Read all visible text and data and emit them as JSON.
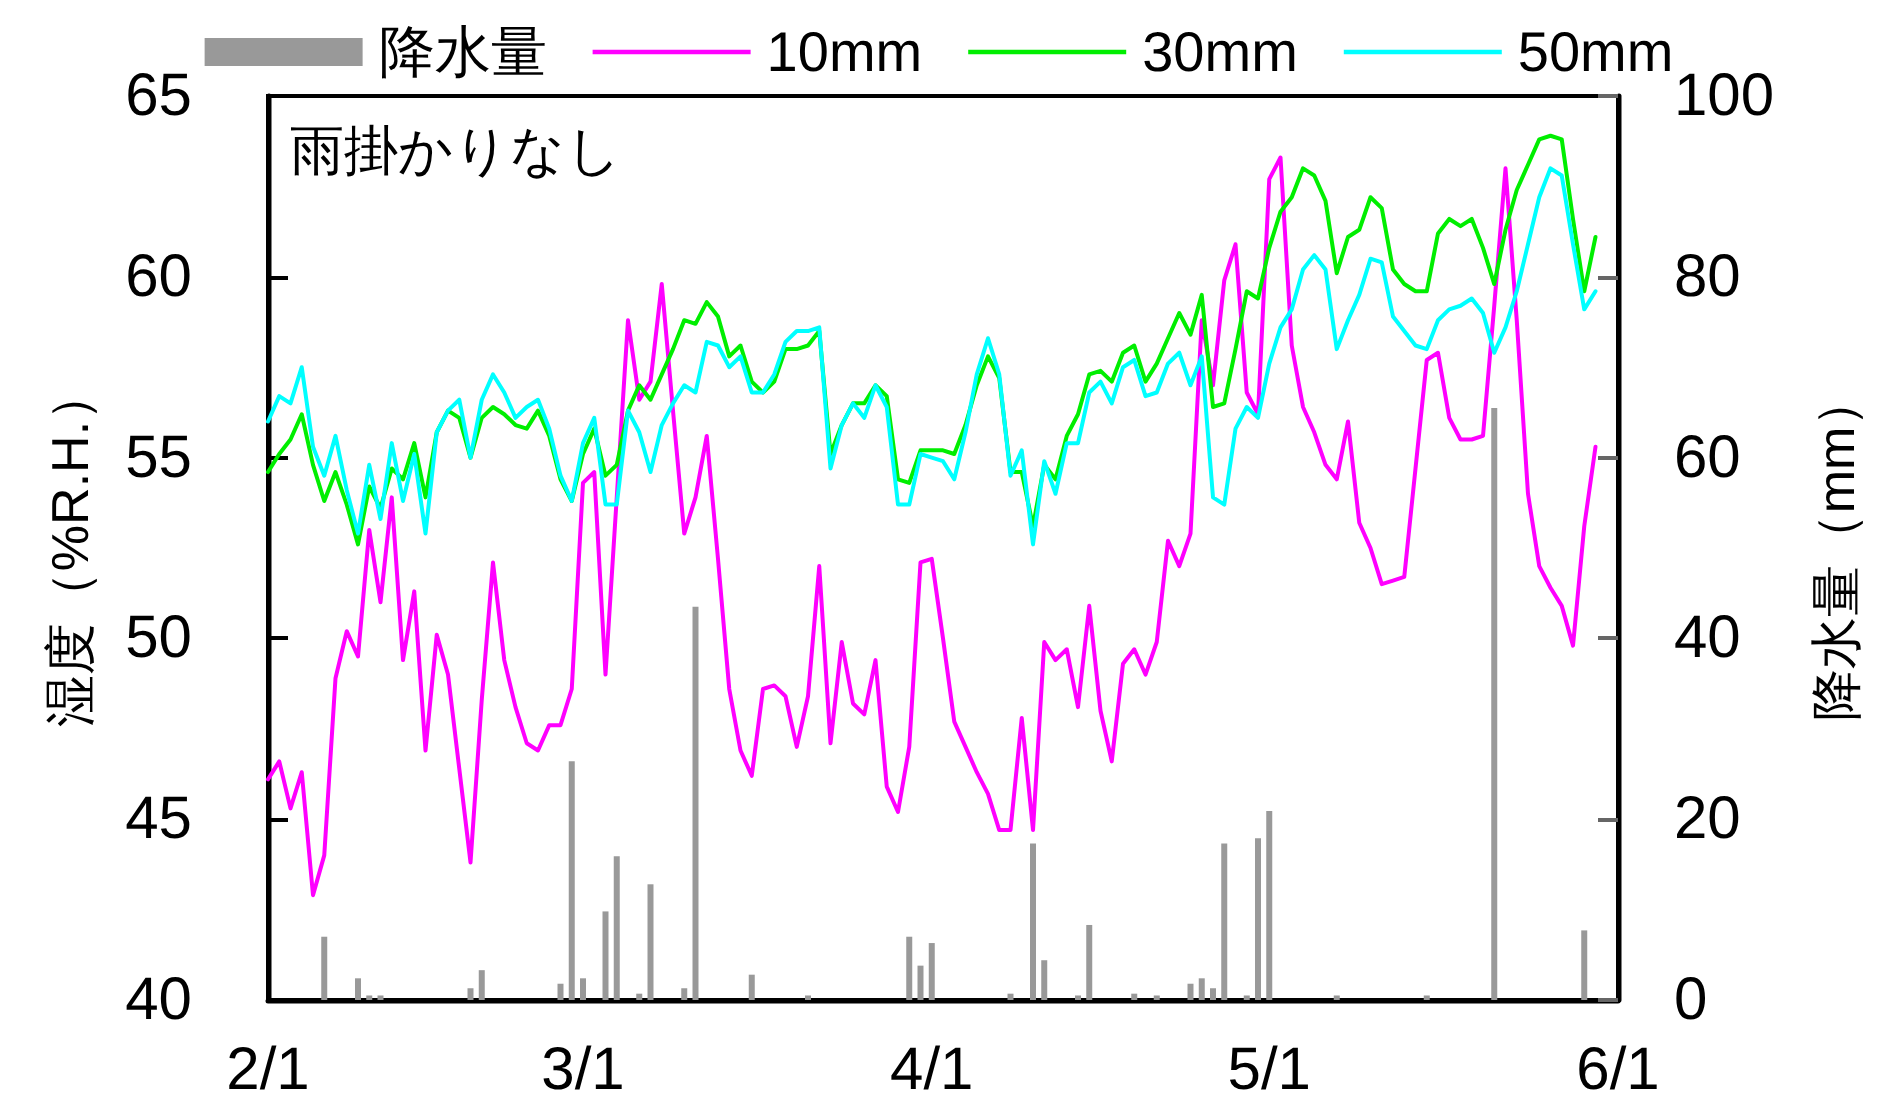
{
  "chart_data": {
    "type": "line",
    "annotations": [
      "雨掛かりなし"
    ],
    "ylabel": "湿度（%R.H.）",
    "y2label": "降水量（mm）",
    "legend": "top",
    "x": [
      "--02-01",
      "--02-02",
      "--02-03",
      "--02-04",
      "--02-05",
      "--02-06",
      "--02-07",
      "--02-08",
      "--02-09",
      "--02-10",
      "--02-11",
      "--02-12",
      "--02-13",
      "--02-14",
      "--02-15",
      "--02-16",
      "--02-17",
      "--02-18",
      "--02-19",
      "--02-20",
      "--02-21",
      "--02-22",
      "--02-23",
      "--02-24",
      "--02-25",
      "--02-26",
      "--02-27",
      "--02-28",
      "--03-01",
      "--03-02",
      "--03-03",
      "--03-04",
      "--03-05",
      "--03-06",
      "--03-07",
      "--03-08",
      "--03-09",
      "--03-10",
      "--03-11",
      "--03-12",
      "--03-13",
      "--03-14",
      "--03-15",
      "--03-16",
      "--03-17",
      "--03-18",
      "--03-19",
      "--03-20",
      "--03-21",
      "--03-22",
      "--03-23",
      "--03-24",
      "--03-25",
      "--03-26",
      "--03-27",
      "--03-28",
      "--03-29",
      "--03-30",
      "--03-31",
      "--04-01",
      "--04-02",
      "--04-03",
      "--04-04",
      "--04-05",
      "--04-06",
      "--04-07",
      "--04-08",
      "--04-09",
      "--04-10",
      "--04-11",
      "--04-12",
      "--04-13",
      "--04-14",
      "--04-15",
      "--04-16",
      "--04-17",
      "--04-18",
      "--04-19",
      "--04-20",
      "--04-21",
      "--04-22",
      "--04-23",
      "--04-24",
      "--04-25",
      "--04-26",
      "--04-27",
      "--04-28",
      "--04-29",
      "--04-30",
      "--05-01",
      "--05-02",
      "--05-03",
      "--05-04",
      "--05-05",
      "--05-06",
      "--05-07",
      "--05-08",
      "--05-09",
      "--05-10",
      "--05-11",
      "--05-12",
      "--05-13",
      "--05-14",
      "--05-15",
      "--05-16",
      "--05-17",
      "--05-18",
      "--05-19",
      "--05-20",
      "--05-21",
      "--05-22",
      "--05-23",
      "--05-24",
      "--05-25",
      "--05-26",
      "--05-27",
      "--05-28",
      "--05-29",
      "--05-30"
    ],
    "xlim": [
      "--02-01",
      "--06-01"
    ],
    "xticks": [
      {
        "value": "--02-01",
        "label": "2/1"
      },
      {
        "value": "--03-01",
        "label": "3/1"
      },
      {
        "value": "--04-01",
        "label": "4/1"
      },
      {
        "value": "--05-01",
        "label": "5/1"
      },
      {
        "value": "--06-01",
        "label": "6/1"
      }
    ],
    "ylim": [
      40,
      65
    ],
    "yticks": [
      40,
      45,
      50,
      55,
      60,
      65
    ],
    "y2lim": [
      0,
      100
    ],
    "y2ticks": [
      0,
      20,
      40,
      60,
      80,
      100
    ],
    "series": [
      {
        "name": "降水量",
        "type": "bar",
        "axis": "y2",
        "color": "#999999",
        "x": [
          "--02-06",
          "--02-09",
          "--02-10",
          "--02-11",
          "--02-19",
          "--02-20",
          "--02-27",
          "--02-28",
          "--03-01",
          "--03-03",
          "--03-04",
          "--03-06",
          "--03-07",
          "--03-10",
          "--03-11",
          "--03-16",
          "--03-21",
          "--03-30",
          "--03-31",
          "--04-01",
          "--04-08",
          "--04-10",
          "--04-11",
          "--04-14",
          "--04-15",
          "--04-19",
          "--04-21",
          "--04-24",
          "--04-25",
          "--04-26",
          "--04-27",
          "--04-29",
          "--04-30",
          "--05-01",
          "--05-07",
          "--05-15",
          "--05-21",
          "--05-29"
        ],
        "values": [
          7,
          2.4,
          0.5,
          0.5,
          1.3,
          3.3,
          1.8,
          26.4,
          2.4,
          9.8,
          15.9,
          0.7,
          12.8,
          1.3,
          43.5,
          2.8,
          0.5,
          7,
          3.8,
          6.3,
          0.7,
          17.3,
          4.4,
          0.5,
          8.3,
          0.7,
          0.5,
          1.8,
          2.4,
          1.3,
          17.3,
          0.5,
          17.9,
          20.9,
          0.5,
          0.5,
          65.5,
          7.7
        ]
      },
      {
        "name": "10mm",
        "color": "#ff00ff",
        "values": [
          46.1,
          46.6,
          45.3,
          46.3,
          42.9,
          44.0,
          48.9,
          50.2,
          49.5,
          53.0,
          51.0,
          53.9,
          49.4,
          51.3,
          46.9,
          50.1,
          49.0,
          46.4,
          43.8,
          48.3,
          52.1,
          49.4,
          48.1,
          47.1,
          46.9,
          47.6,
          47.6,
          48.6,
          54.3,
          54.6,
          49.0,
          53.9,
          58.8,
          56.6,
          57.1,
          59.8,
          56.3,
          52.9,
          53.9,
          55.6,
          52.2,
          48.6,
          46.9,
          46.2,
          48.6,
          48.7,
          48.4,
          47.0,
          48.4,
          52.0,
          47.1,
          49.9,
          48.2,
          47.9,
          49.4,
          45.9,
          45.2,
          47.0,
          52.1,
          52.2,
          50.0,
          47.7,
          47.0,
          46.3,
          45.7,
          44.7,
          44.7,
          47.8,
          44.7,
          49.9,
          49.4,
          49.7,
          48.1,
          50.9,
          48.0,
          46.6,
          49.3,
          49.7,
          49.0,
          49.9,
          52.7,
          52.0,
          52.9,
          58.8,
          57.0,
          59.9,
          60.9,
          56.8,
          56.2,
          62.7,
          63.3,
          58.1,
          56.4,
          55.7,
          54.8,
          54.4,
          56.0,
          53.2,
          52.5,
          51.5,
          51.6,
          51.7,
          54.7,
          57.7,
          57.9,
          56.1,
          55.5,
          55.5,
          55.6,
          59.2,
          63.0,
          58.8,
          54.0,
          52.0,
          51.4,
          50.9,
          49.8,
          53.1,
          55.3
        ]
      },
      {
        "name": "30mm",
        "color": "#00ee00",
        "values": [
          54.6,
          55.1,
          55.5,
          56.2,
          54.8,
          53.8,
          54.6,
          53.7,
          52.6,
          54.2,
          53.6,
          54.7,
          54.4,
          55.4,
          53.9,
          55.7,
          56.3,
          56.1,
          55.0,
          56.1,
          56.4,
          56.2,
          55.9,
          55.8,
          56.3,
          55.6,
          54.4,
          53.8,
          55.1,
          55.8,
          54.5,
          54.8,
          56.3,
          57.0,
          56.6,
          57.3,
          58.0,
          58.8,
          58.7,
          59.3,
          58.9,
          57.8,
          58.1,
          57.1,
          56.8,
          57.1,
          58.0,
          58.0,
          58.1,
          58.5,
          55.1,
          55.9,
          56.5,
          56.5,
          57.0,
          56.7,
          54.4,
          54.3,
          55.2,
          55.2,
          55.2,
          55.1,
          55.9,
          57.0,
          57.8,
          57.2,
          54.6,
          54.6,
          53.1,
          54.8,
          54.4,
          55.6,
          56.2,
          57.3,
          57.4,
          57.1,
          57.9,
          58.1,
          57.1,
          57.6,
          58.3,
          59.0,
          58.4,
          59.5,
          56.4,
          56.5,
          58.0,
          59.6,
          59.4,
          60.8,
          61.8,
          62.2,
          63.0,
          62.8,
          62.1,
          60.1,
          61.1,
          61.3,
          62.2,
          61.9,
          60.2,
          59.8,
          59.6,
          59.6,
          61.2,
          61.6,
          61.4,
          61.6,
          60.8,
          59.8,
          61.3,
          62.4,
          63.1,
          63.8,
          63.9,
          63.8,
          61.6,
          59.6,
          61.1
        ]
      },
      {
        "name": "50mm",
        "color": "#00ffff",
        "values": [
          56.0,
          56.7,
          56.5,
          57.5,
          55.3,
          54.5,
          55.6,
          54.1,
          52.9,
          54.8,
          53.3,
          55.4,
          53.8,
          55.1,
          52.9,
          55.7,
          56.3,
          56.6,
          55.0,
          56.6,
          57.3,
          56.8,
          56.1,
          56.4,
          56.6,
          55.8,
          54.5,
          53.8,
          55.4,
          56.1,
          53.7,
          53.7,
          56.3,
          55.7,
          54.6,
          55.9,
          56.5,
          57.0,
          56.8,
          58.2,
          58.1,
          57.5,
          57.8,
          56.8,
          56.8,
          57.3,
          58.2,
          58.5,
          58.5,
          58.6,
          54.7,
          55.9,
          56.5,
          56.1,
          57.0,
          56.4,
          53.7,
          53.7,
          55.1,
          55.0,
          54.9,
          54.4,
          55.7,
          57.3,
          58.3,
          57.3,
          54.5,
          55.2,
          52.6,
          54.9,
          54.0,
          55.4,
          55.4,
          56.8,
          57.1,
          56.5,
          57.5,
          57.7,
          56.7,
          56.8,
          57.6,
          57.9,
          57.0,
          57.8,
          53.9,
          53.7,
          55.8,
          56.4,
          56.1,
          57.6,
          58.6,
          59.1,
          60.2,
          60.6,
          60.2,
          58.0,
          58.8,
          59.5,
          60.5,
          60.4,
          58.9,
          58.5,
          58.1,
          58.0,
          58.8,
          59.1,
          59.2,
          59.4,
          59.0,
          57.9,
          58.6,
          59.6,
          60.9,
          62.2,
          63.0,
          62.8,
          60.9,
          59.1,
          59.6
        ]
      }
    ]
  }
}
